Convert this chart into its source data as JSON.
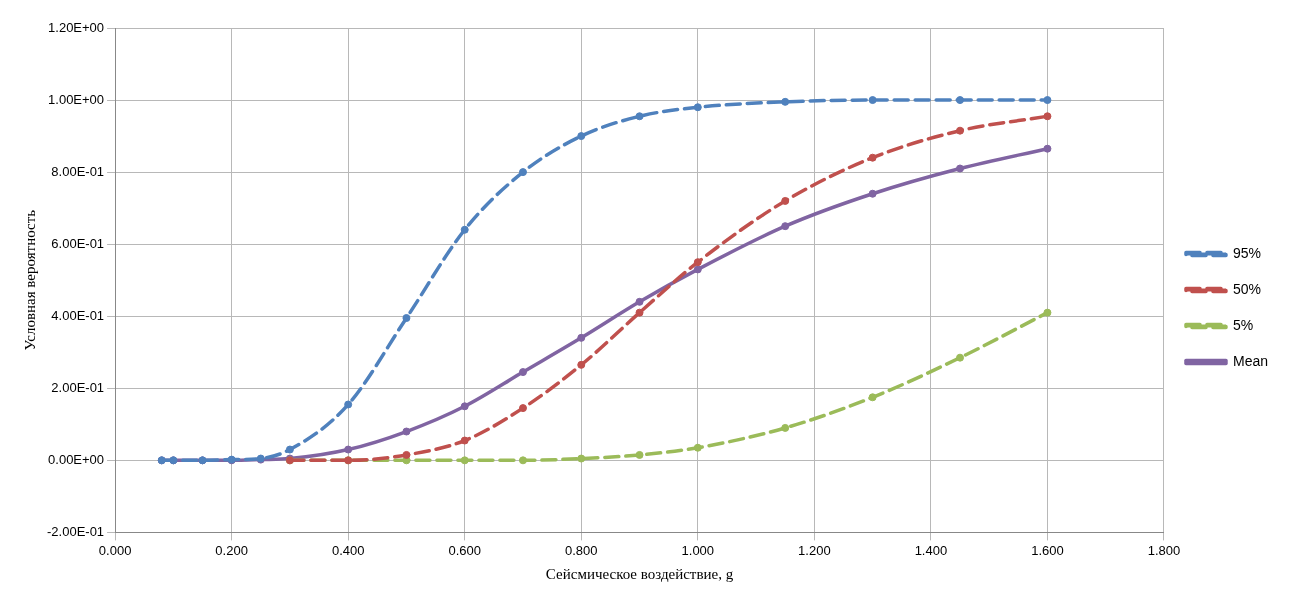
{
  "chart_data": {
    "type": "line",
    "xlabel": "Сейсмическое воздействие, g",
    "ylabel": "Условная вероятность",
    "x": [
      0.08,
      0.1,
      0.15,
      0.2,
      0.25,
      0.3,
      0.4,
      0.5,
      0.6,
      0.7,
      0.8,
      0.9,
      1.0,
      1.15,
      1.3,
      1.45,
      1.6
    ],
    "series": [
      {
        "name": "95%",
        "color": "#4f81bd",
        "line_style": "dashed",
        "values": [
          0,
          0,
          0,
          0.002,
          0.005,
          0.03,
          0.155,
          0.395,
          0.64,
          0.8,
          0.9,
          0.955,
          0.98,
          0.995,
          1.0,
          1.0,
          1.0
        ]
      },
      {
        "name": "50%",
        "color": "#c0504d",
        "line_style": "dashed",
        "values": [
          null,
          null,
          null,
          null,
          null,
          0,
          0,
          0.015,
          0.055,
          0.145,
          0.265,
          0.41,
          0.55,
          0.72,
          0.84,
          0.915,
          0.955
        ]
      },
      {
        "name": "5%",
        "color": "#9bbb59",
        "line_style": "dashed",
        "values": [
          null,
          null,
          null,
          null,
          null,
          0,
          0,
          0,
          0,
          0,
          0.005,
          0.015,
          0.035,
          0.09,
          0.175,
          0.285,
          0.41
        ]
      },
      {
        "name": "Mean",
        "color": "#8064a2",
        "line_style": "solid",
        "values": [
          0,
          0,
          0,
          0,
          0.002,
          0.005,
          0.03,
          0.08,
          0.15,
          0.245,
          0.34,
          0.44,
          0.53,
          0.65,
          0.74,
          0.81,
          0.865
        ]
      }
    ],
    "xlim": [
      0,
      1.8
    ],
    "xticks": [
      {
        "value": 0,
        "label": "0.000"
      },
      {
        "value": 0.2,
        "label": "0.200"
      },
      {
        "value": 0.4,
        "label": "0.400"
      },
      {
        "value": 0.6,
        "label": "0.600"
      },
      {
        "value": 0.8,
        "label": "0.800"
      },
      {
        "value": 1.0,
        "label": "1.000"
      },
      {
        "value": 1.2,
        "label": "1.200"
      },
      {
        "value": 1.4,
        "label": "1.400"
      },
      {
        "value": 1.6,
        "label": "1.600"
      },
      {
        "value": 1.8,
        "label": "1.800"
      }
    ],
    "ylim": [
      -0.2,
      1.2
    ],
    "yticks": [
      {
        "value": -0.2,
        "label": "-2.00E-01"
      },
      {
        "value": 0,
        "label": "0.00E+00"
      },
      {
        "value": 0.2,
        "label": "2.00E-01"
      },
      {
        "value": 0.4,
        "label": "4.00E-01"
      },
      {
        "value": 0.6,
        "label": "6.00E-01"
      },
      {
        "value": 0.8,
        "label": "8.00E-01"
      },
      {
        "value": 1.0,
        "label": "1.00E+00"
      },
      {
        "value": 1.2,
        "label": "1.20E+00"
      }
    ],
    "grid": true,
    "legend": "right",
    "marker": "circle"
  }
}
